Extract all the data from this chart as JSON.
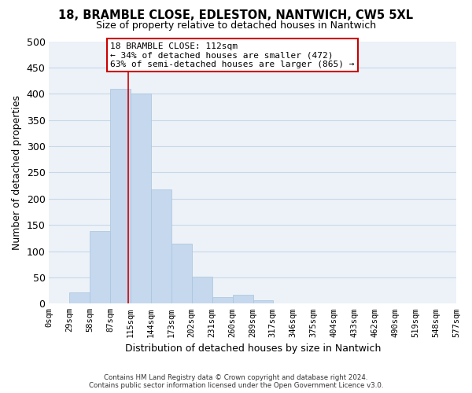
{
  "title": "18, BRAMBLE CLOSE, EDLESTON, NANTWICH, CW5 5XL",
  "subtitle": "Size of property relative to detached houses in Nantwich",
  "xlabel": "Distribution of detached houses by size in Nantwich",
  "ylabel": "Number of detached properties",
  "bar_color": "#c5d8ed",
  "bar_edge_color": "#a8c4dc",
  "grid_color": "#c8d8e8",
  "bin_edges": [
    0,
    29,
    58,
    87,
    115,
    144,
    173,
    202,
    231,
    260,
    289,
    317,
    346,
    375,
    404,
    433,
    462,
    490,
    519,
    548,
    577
  ],
  "bin_labels": [
    "0sqm",
    "29sqm",
    "58sqm",
    "87sqm",
    "115sqm",
    "144sqm",
    "173sqm",
    "202sqm",
    "231sqm",
    "260sqm",
    "289sqm",
    "317sqm",
    "346sqm",
    "375sqm",
    "404sqm",
    "433sqm",
    "462sqm",
    "490sqm",
    "519sqm",
    "548sqm",
    "577sqm"
  ],
  "counts": [
    0,
    22,
    138,
    410,
    400,
    217,
    115,
    52,
    12,
    17,
    6,
    0,
    0,
    0,
    0,
    0,
    1,
    0,
    0,
    1
  ],
  "vline_x": 112,
  "vline_color": "#cc0000",
  "annotation_title": "18 BRAMBLE CLOSE: 112sqm",
  "annotation_line1": "← 34% of detached houses are smaller (472)",
  "annotation_line2": "63% of semi-detached houses are larger (865) →",
  "annotation_box_color": "#ffffff",
  "annotation_box_edge": "#cc0000",
  "ylim": [
    0,
    500
  ],
  "yticks": [
    0,
    50,
    100,
    150,
    200,
    250,
    300,
    350,
    400,
    450,
    500
  ],
  "footnote1": "Contains HM Land Registry data © Crown copyright and database right 2024.",
  "footnote2": "Contains public sector information licensed under the Open Government Licence v3.0.",
  "bg_color": "#ffffff",
  "plot_bg_color": "#edf2f8"
}
